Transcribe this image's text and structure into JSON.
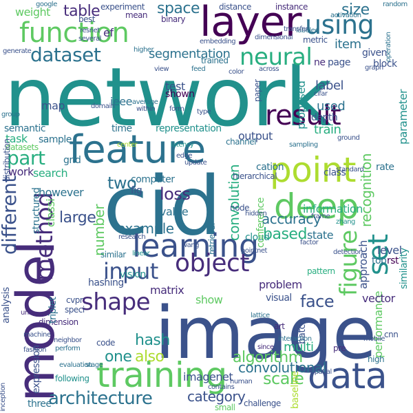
{
  "wordcloud": {
    "background": "#ffffff",
    "palette": [
      "#440154",
      "#472d7b",
      "#3b528b",
      "#2c728e",
      "#21918c",
      "#28ae80",
      "#5ec962",
      "#addc30",
      "#fde725"
    ],
    "words": [
      {
        "text": "network",
        "color": "#21918c"
      },
      {
        "text": "image",
        "color": "#3b528b"
      },
      {
        "text": "cid",
        "color": "#2c728e"
      },
      {
        "text": "model",
        "color": "#472d7b"
      },
      {
        "text": "feature",
        "color": "#2c728e"
      },
      {
        "text": "layer",
        "color": "#440154"
      },
      {
        "text": "function",
        "color": "#5ec962"
      },
      {
        "text": "training",
        "color": "#5ec962"
      },
      {
        "text": "data",
        "color": "#3b528b"
      },
      {
        "text": "learning",
        "color": "#3b528b"
      },
      {
        "text": "deep",
        "color": "#5ec962"
      },
      {
        "text": "point",
        "color": "#addc30"
      },
      {
        "text": "set",
        "color": "#21918c"
      },
      {
        "text": "object",
        "color": "#472d7b"
      },
      {
        "text": "method",
        "color": "#472d7b"
      },
      {
        "text": "using",
        "color": "#2c728e"
      },
      {
        "text": "result",
        "color": "#440154"
      },
      {
        "text": "neural",
        "color": "#28ae80"
      },
      {
        "text": "figure",
        "color": "#5ec962"
      },
      {
        "text": "architecture",
        "color": "#2c728e"
      },
      {
        "text": "dataset",
        "color": "#2c728e"
      },
      {
        "text": "different",
        "color": "#3b528b"
      },
      {
        "text": "shape",
        "color": "#472d7b"
      },
      {
        "text": "input",
        "color": "#3b528b"
      },
      {
        "text": "part",
        "color": "#28ae80"
      },
      {
        "text": "segmentation",
        "color": "#2c728e"
      },
      {
        "text": "algorithm",
        "color": "#5ec962"
      },
      {
        "text": "convolutional",
        "color": "#2c728e"
      },
      {
        "text": "recognition",
        "color": "#5ec962"
      },
      {
        "text": "performance",
        "color": "#5ec962"
      },
      {
        "text": "convolution",
        "color": "#28ae80"
      },
      {
        "text": "accuracy",
        "color": "#2c728e"
      },
      {
        "text": "example",
        "color": "#2c728e"
      },
      {
        "text": "loss",
        "color": "#472d7b"
      },
      {
        "text": "number",
        "color": "#5ec962"
      },
      {
        "text": "category",
        "color": "#3b528b"
      },
      {
        "text": "also",
        "color": "#addc30"
      },
      {
        "text": "one",
        "color": "#21918c"
      },
      {
        "text": "two",
        "color": "#2c728e"
      },
      {
        "text": "face",
        "color": "#3b528b"
      },
      {
        "text": "hash",
        "color": "#21918c"
      },
      {
        "text": "based",
        "color": "#28ae80"
      },
      {
        "text": "large",
        "color": "#3b528b"
      },
      {
        "text": "space",
        "color": "#2c728e"
      },
      {
        "text": "size",
        "color": "#2c728e"
      },
      {
        "text": "table",
        "color": "#472d7b"
      },
      {
        "text": "scale",
        "color": "#5ec962"
      },
      {
        "text": "multi",
        "color": "#28ae80"
      },
      {
        "text": "label",
        "color": "#3b528b"
      },
      {
        "text": "task",
        "color": "#28ae80"
      },
      {
        "text": "train",
        "color": "#28ae80"
      },
      {
        "text": "classi",
        "color": "#5ec962"
      },
      {
        "text": "however",
        "color": "#2c728e"
      },
      {
        "text": "work",
        "color": "#472d7b"
      },
      {
        "text": "search",
        "color": "#28ae80"
      },
      {
        "text": "structured",
        "color": "#2c728e"
      },
      {
        "text": "item",
        "color": "#2c728e"
      },
      {
        "text": "weight",
        "color": "#5ec962"
      },
      {
        "text": "test",
        "color": "#3b528b"
      },
      {
        "text": "used",
        "color": "#2c728e"
      },
      {
        "text": "depth",
        "color": "#3b528b"
      },
      {
        "text": "proposed",
        "color": "#21918c"
      },
      {
        "text": "approach",
        "color": "#3b528b"
      },
      {
        "text": "similarity",
        "color": "#21918c"
      },
      {
        "text": "information",
        "color": "#28ae80"
      },
      {
        "text": "level",
        "color": "#3b528b"
      },
      {
        "text": "problem",
        "color": "#472d7b"
      },
      {
        "text": "vision",
        "color": "#21918c"
      },
      {
        "text": "hashing",
        "color": "#3b528b"
      },
      {
        "text": "show",
        "color": "#5ec962"
      },
      {
        "text": "matrix",
        "color": "#472d7b"
      },
      {
        "text": "sample",
        "color": "#2c728e"
      },
      {
        "text": "semantic",
        "color": "#2c728e"
      },
      {
        "text": "visual",
        "color": "#3b528b"
      },
      {
        "text": "imagenet",
        "color": "#3b528b"
      },
      {
        "text": "vector",
        "color": "#472d7b"
      },
      {
        "text": "parameter",
        "color": "#21918c"
      },
      {
        "text": "output",
        "color": "#3b528b"
      },
      {
        "text": "representation",
        "color": "#21918c"
      },
      {
        "text": "computer",
        "color": "#2c728e"
      },
      {
        "text": "value",
        "color": "#2c728e"
      },
      {
        "text": "state",
        "color": "#2c728e"
      },
      {
        "text": "cloud",
        "color": "#21918c"
      },
      {
        "text": "map",
        "color": "#3b528b"
      },
      {
        "text": "grid",
        "color": "#2c728e"
      },
      {
        "text": "time",
        "color": "#2c728e"
      },
      {
        "text": "shown",
        "color": "#440154"
      },
      {
        "text": "block",
        "color": "#3b528b"
      },
      {
        "text": "given",
        "color": "#3b528b"
      },
      {
        "text": "distance",
        "color": "#3b528b"
      },
      {
        "text": "instance",
        "color": "#472d7b"
      },
      {
        "text": "experiment",
        "color": "#3b528b"
      },
      {
        "text": "best",
        "color": "#3b528b"
      },
      {
        "text": "mean",
        "color": "#472d7b"
      },
      {
        "text": "metric",
        "color": "#3b528b"
      },
      {
        "text": "embedding",
        "color": "#3b528b"
      },
      {
        "text": "dimensional",
        "color": "#3b528b"
      },
      {
        "text": "class",
        "color": "#3b528b"
      },
      {
        "text": "rate",
        "color": "#2c728e"
      },
      {
        "text": "top",
        "color": "#2c728e"
      },
      {
        "text": "rst",
        "color": "#440154"
      },
      {
        "text": "dimension",
        "color": "#472d7b"
      },
      {
        "text": "analysis",
        "color": "#3b528b"
      },
      {
        "text": "triplet",
        "color": "#2c728e"
      },
      {
        "text": "expression",
        "color": "#3b528b"
      },
      {
        "text": "three",
        "color": "#2c728e"
      },
      {
        "text": "code",
        "color": "#3b528b"
      },
      {
        "text": "baseline",
        "color": "#addc30"
      },
      {
        "text": "challenge",
        "color": "#3b528b"
      },
      {
        "text": "small",
        "color": "#5ec962"
      },
      {
        "text": "ieee",
        "color": "#2c728e"
      },
      {
        "text": "cvpr",
        "color": "#3b528b"
      },
      {
        "text": "pattern",
        "color": "#28ae80"
      },
      {
        "text": "conference",
        "color": "#5ec962"
      },
      {
        "text": "datasets",
        "color": "#5ec962"
      },
      {
        "text": "fig",
        "color": "#3b528b"
      },
      {
        "text": "ef",
        "color": "#472d7b"
      },
      {
        "text": "high",
        "color": "#2c728e"
      },
      {
        "text": "ne",
        "color": "#472d7b"
      },
      {
        "text": "page",
        "color": "#3b528b"
      },
      {
        "text": "trained",
        "color": "#2c728e"
      },
      {
        "text": "batch",
        "color": "#3b528b"
      },
      {
        "text": "cation",
        "color": "#2c728e"
      },
      {
        "text": "channel",
        "color": "#2c728e"
      },
      {
        "text": "speci",
        "color": "#3b528b"
      },
      {
        "text": "similar",
        "color": "#2c728e"
      },
      {
        "text": "hierarchical",
        "color": "#3b528b"
      },
      {
        "text": "node",
        "color": "#3b528b"
      },
      {
        "text": "art",
        "color": "#472d7b"
      },
      {
        "text": "wang",
        "color": "#3b528b"
      },
      {
        "text": "zhang",
        "color": "#21918c"
      },
      {
        "text": "random",
        "color": "#2c728e"
      },
      {
        "text": "google",
        "color": "#2c728e"
      },
      {
        "text": "binary",
        "color": "#472d7b"
      },
      {
        "text": "resnet",
        "color": "#3b528b"
      },
      {
        "text": "several",
        "color": "#3b528b"
      },
      {
        "text": "center",
        "color": "#addc30"
      },
      {
        "text": "group",
        "color": "#2c728e"
      },
      {
        "text": "latency",
        "color": "#21918c"
      },
      {
        "text": "domain",
        "color": "#3b528b"
      },
      {
        "text": "research",
        "color": "#3b528b"
      },
      {
        "text": "machine",
        "color": "#3b528b"
      },
      {
        "text": "fashion",
        "color": "#3b528b"
      },
      {
        "text": "following",
        "color": "#21918c"
      },
      {
        "text": "stage",
        "color": "#2c728e"
      },
      {
        "text": "inception",
        "color": "#3b528b"
      },
      {
        "text": "contains",
        "color": "#3b528b"
      },
      {
        "text": "human",
        "color": "#3b528b"
      },
      {
        "text": "interaction",
        "color": "#2c728e"
      },
      {
        "text": "mobile",
        "color": "#3b528b"
      },
      {
        "text": "cnn",
        "color": "#3b528b"
      },
      {
        "text": "labeled",
        "color": "#2c728e"
      },
      {
        "text": "activation",
        "color": "#2c728e"
      },
      {
        "text": "operation",
        "color": "#2c728e"
      },
      {
        "text": "average",
        "color": "#2c728e"
      },
      {
        "text": "retrieval",
        "color": "#2c728e"
      },
      {
        "text": "pointnet",
        "color": "#3b528b"
      },
      {
        "text": "linear",
        "color": "#21918c"
      },
      {
        "text": "paper",
        "color": "#3b528b"
      },
      {
        "text": "neighbor",
        "color": "#3b528b"
      },
      {
        "text": "perform",
        "color": "#2c728e"
      },
      {
        "text": "evaluation",
        "color": "#2c728e"
      },
      {
        "text": "distribution",
        "color": "#3b528b"
      },
      {
        "text": "lattice",
        "color": "#2c728e"
      },
      {
        "text": "pre",
        "color": "#472d7b"
      },
      {
        "text": "spatial",
        "color": "#3b528b"
      },
      {
        "text": "graph",
        "color": "#3b528b"
      },
      {
        "text": "frame",
        "color": "#3b528b"
      },
      {
        "text": "detection",
        "color": "#3b528b"
      },
      {
        "text": "ground",
        "color": "#3b528b"
      },
      {
        "text": "sampling",
        "color": "#2c728e"
      },
      {
        "text": "across",
        "color": "#3b528b"
      },
      {
        "text": "factor",
        "color": "#3b528b"
      },
      {
        "text": "update",
        "color": "#3b528b"
      },
      {
        "text": "unit",
        "color": "#472d7b"
      },
      {
        "text": "edge",
        "color": "#3b528b"
      },
      {
        "text": "generate",
        "color": "#3b528b"
      },
      {
        "text": "transfer",
        "color": "#3b528b"
      },
      {
        "text": "higher",
        "color": "#2c728e"
      },
      {
        "text": "cifar",
        "color": "#3b528b"
      },
      {
        "text": "standard",
        "color": "#3b528b"
      },
      {
        "text": "since",
        "color": "#472d7b"
      },
      {
        "text": "within",
        "color": "#3b528b"
      },
      {
        "text": "form",
        "color": "#3b528b"
      },
      {
        "text": "type",
        "color": "#3b528b"
      },
      {
        "text": "feed",
        "color": "#2c728e"
      },
      {
        "text": "view",
        "color": "#3b528b"
      },
      {
        "text": "hidden",
        "color": "#3b528b"
      },
      {
        "text": "color",
        "color": "#3b528b"
      }
    ]
  }
}
